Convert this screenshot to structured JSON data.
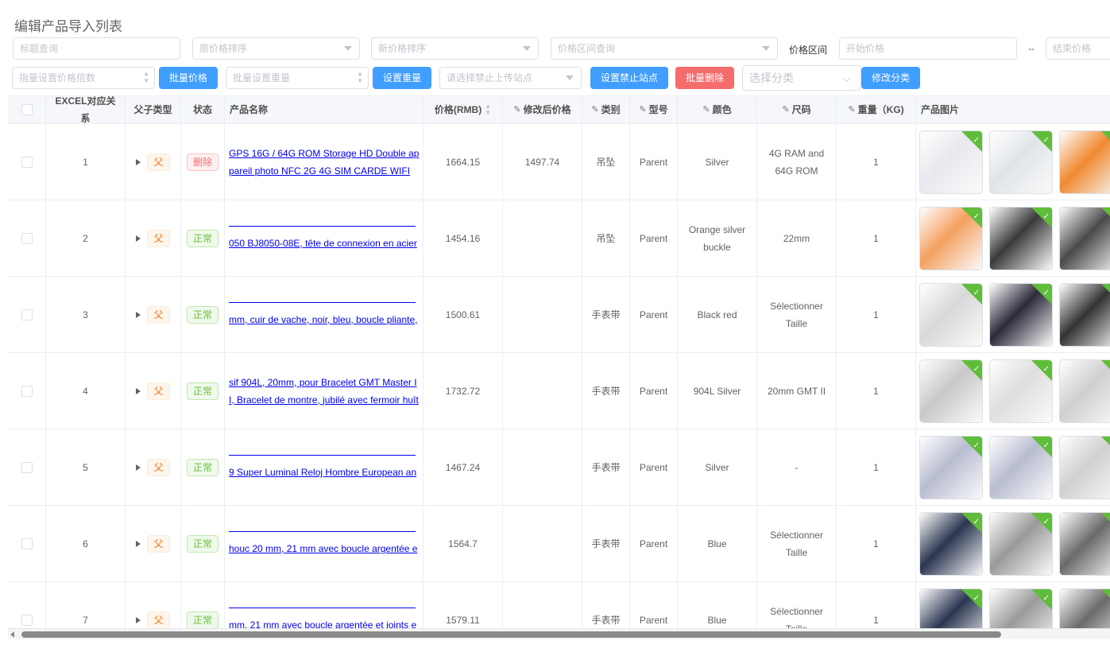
{
  "page_title": "编辑产品导入列表",
  "filters": {
    "title_search": "标题查询",
    "orig_price_sort": "原价格排序",
    "new_price_sort": "新价格排序",
    "price_range_query": "价格区间查询",
    "price_range_label": "价格区间",
    "start_price": "开始价格",
    "dash": "--",
    "end_price": "结束价格"
  },
  "toolbar": {
    "price_multiplier_placeholder": "指量设置价格倍数",
    "batch_price": "批量价格",
    "weight_placeholder": "批量设置重量",
    "set_weight": "设置重量",
    "site_placeholder": "请选择禁止上传站点",
    "set_forbidden_sites": "设置禁止站点",
    "batch_delete": "批量删除",
    "category_placeholder": "选择分类",
    "modify_category": "修改分类"
  },
  "colors": {
    "primary": "#409eff",
    "danger": "#f56c6c",
    "success": "#67c23a",
    "warning": "#e6a23c",
    "link": "#0000ee"
  },
  "table": {
    "headers": [
      "EXCEL对应关系",
      "父子类型",
      "状态",
      "产品名称",
      "价格(RMB)",
      "修改后价格",
      "类别",
      "型号",
      "颜色",
      "尺码",
      "重量（KG)",
      "产品图片"
    ],
    "rows": [
      {
        "excel": "1",
        "type": "父",
        "status": "删除",
        "status_kind": "danger",
        "name_clipped_first": false,
        "name_lines": [
          "GPS 16G / 64G ROM Storage HD Double ap",
          "pareil photo NFC 2G 4G SIM CARDE WIFI"
        ],
        "price": "1664.15",
        "new_price": "1497.74",
        "category": "吊坠",
        "model": "Parent",
        "color": "Silver",
        "size": "4G RAM and 64G ROM",
        "weight": "1",
        "imgs": [
          "#e8e8ee",
          "#e0e4e8",
          "#f08a30"
        ]
      },
      {
        "excel": "2",
        "type": "父",
        "status": "正常",
        "status_kind": "success",
        "name_clipped_first": true,
        "name_lines": [
          "050 BJ8050-08E, tête de connexion en acier"
        ],
        "price": "1454.16",
        "new_price": "",
        "category": "吊坠",
        "model": "Parent",
        "color": "Orange silver buckle",
        "size": "22mm",
        "weight": "1",
        "imgs": [
          "#f4a060",
          "#3a3a3a",
          "#4a4a4a"
        ]
      },
      {
        "excel": "3",
        "type": "父",
        "status": "正常",
        "status_kind": "success",
        "name_clipped_first": true,
        "name_lines": [
          "mm, cuir de vache, noir, bleu, boucle pliante,"
        ],
        "price": "1500.61",
        "new_price": "",
        "category": "手表带",
        "model": "Parent",
        "color": "Black red",
        "size": "Sélectionner Taille",
        "weight": "1",
        "imgs": [
          "#d8d8d8",
          "#2a2a3a",
          "#333"
        ]
      },
      {
        "excel": "4",
        "type": "父",
        "status": "正常",
        "status_kind": "success",
        "name_clipped_first": false,
        "name_lines": [
          "sif 904L, 20mm, pour Bracelet GMT Master I",
          "I, Bracelet de montre, jubilé avec fermoir huît"
        ],
        "price": "1732.72",
        "new_price": "",
        "category": "手表带",
        "model": "Parent",
        "color": "904L Silver",
        "size": "20mm GMT II",
        "weight": "1",
        "imgs": [
          "#c8c8c8",
          "#dedede",
          "#cfcfcf"
        ]
      },
      {
        "excel": "5",
        "type": "父",
        "status": "正常",
        "status_kind": "success",
        "name_clipped_first": true,
        "name_lines": [
          "9 Super Luminal Reloj Hombre European an"
        ],
        "price": "1467.24",
        "new_price": "",
        "category": "手表带",
        "model": "Parent",
        "color": "Silver",
        "size": "-",
        "weight": "1",
        "imgs": [
          "#b8bcd0",
          "#b8bcd0",
          "#d0d0d0"
        ]
      },
      {
        "excel": "6",
        "type": "父",
        "status": "正常",
        "status_kind": "success",
        "name_clipped_first": true,
        "name_lines": [
          "houc 20 mm, 21 mm avec boucle argentée e"
        ],
        "price": "1564.7",
        "new_price": "",
        "category": "手表带",
        "model": "Parent",
        "color": "Blue",
        "size": "Sélectionner Taille",
        "weight": "1",
        "imgs": [
          "#2a3550",
          "#9a9a9a",
          "#6a6a6a"
        ]
      },
      {
        "excel": "7",
        "type": "父",
        "status": "正常",
        "status_kind": "success",
        "name_clipped_first": true,
        "name_lines": [
          "mm, 21 mm avec boucle argentée et joints e"
        ],
        "price": "1579.11",
        "new_price": "",
        "category": "手表带",
        "model": "Parent",
        "color": "Blue",
        "size": "Sélectionner Taille",
        "weight": "1",
        "imgs": [
          "#2a3550",
          "#9a9a9a",
          "#6a6a6a"
        ]
      }
    ]
  }
}
